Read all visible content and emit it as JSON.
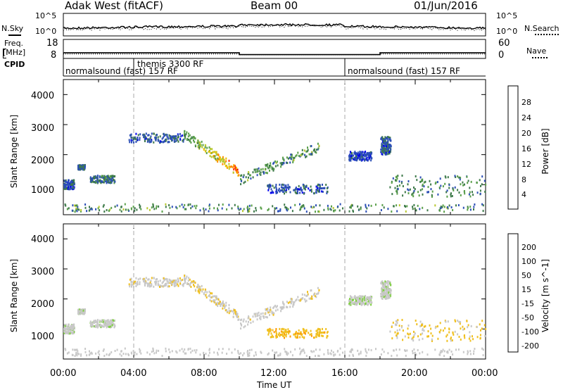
{
  "header": {
    "station": "Adak West (fitACF)",
    "beam": "Beam 00",
    "date": "01/Jun/2016"
  },
  "left_labels": {
    "nsky": "N.Sky",
    "freq": "Freq.",
    "freq_unit": "[MHz]",
    "cpid": "CPID"
  },
  "right_labels": {
    "nsearch": "N.Search",
    "nave": "Nave"
  },
  "noise_axis": {
    "left": [
      "10^5",
      "10^0"
    ],
    "right": [
      "10^5",
      "10^0"
    ]
  },
  "freq_axis": {
    "left": [
      "18",
      "8"
    ],
    "right": [
      "60",
      "0"
    ]
  },
  "cpid_labels": [
    {
      "text": "normalsound (fast) 157 RF",
      "t": 0.1
    },
    {
      "text": "themis 3300 RF",
      "t": 4.0
    },
    {
      "text": "normalsound (fast) 157 RF",
      "t": 16.0
    }
  ],
  "time_axis": {
    "labels": [
      "00:00",
      "04:00",
      "08:00",
      "12:00",
      "16:00",
      "20:00",
      "00:00"
    ],
    "title": "Time UT"
  },
  "power_panel": {
    "ylabel": "Slant Range [km]",
    "yticks": [
      "4000",
      "3000",
      "2000",
      "1000"
    ],
    "colorbar_label": "Power [dB]",
    "colorbar_ticks": [
      "28",
      "24",
      "20",
      "16",
      "12",
      "8",
      "4"
    ],
    "colors": [
      "#0000ee",
      "#2c4fb6",
      "#3e7a4a",
      "#5aa04a",
      "#b8c830",
      "#f0c000",
      "#ff8a00",
      "#ff3300",
      "#e60000"
    ]
  },
  "velocity_panel": {
    "ylabel": "Slant Range [km]",
    "yticks": [
      "4000",
      "3000",
      "2000",
      "1000"
    ],
    "colorbar_label": "Velocity [m s^-1]",
    "colorbar_ticks": [
      "200",
      "100",
      "50",
      "15",
      "-15",
      "-50",
      "-100",
      "-200"
    ],
    "colors": [
      "#1d3fb0",
      "#2f6fa0",
      "#3b8a40",
      "#7fd040",
      "#c8c8c8",
      "#f0c020",
      "#ff9a00",
      "#ff5a00",
      "#ee0000"
    ]
  },
  "chart_data": {
    "type": "heatmap",
    "x_unit": "hours UT",
    "xlim": [
      0,
      24
    ],
    "ylim": [
      0,
      4500
    ],
    "cpid_change_times": [
      4.0,
      16.0
    ],
    "frequency_steps": [
      {
        "start": 0,
        "end": 4.0,
        "value": 11
      },
      {
        "start": 4.0,
        "end": 10.0,
        "value": 11
      },
      {
        "start": 10.0,
        "end": 18.0,
        "value": 10
      },
      {
        "start": 18.0,
        "end": 24.0,
        "value": 11
      }
    ],
    "nave_steps": [
      {
        "start": 0,
        "end": 4.0,
        "value": 14
      },
      {
        "start": 4.0,
        "end": 10.0,
        "value": 14
      },
      {
        "start": 10.0,
        "end": 18.0,
        "value": 12
      },
      {
        "start": 18.0,
        "end": 24.0,
        "value": 14
      }
    ],
    "echo_regions": [
      {
        "name": "early-low-range",
        "t0": 0.0,
        "t1": 0.6,
        "r0": 850,
        "r1": 1150,
        "power": 6,
        "velocity": 5
      },
      {
        "name": "early-1600",
        "t0": 0.8,
        "t1": 1.2,
        "r0": 1500,
        "r1": 1650,
        "power": 7,
        "velocity": 5
      },
      {
        "name": "early-1200",
        "t0": 1.5,
        "t1": 2.9,
        "r0": 1050,
        "r1": 1300,
        "power": 8,
        "velocity": 5
      },
      {
        "name": "band-2600",
        "t0": 3.7,
        "t1": 6.8,
        "r0": 2400,
        "r1": 2700,
        "power": 6,
        "velocity": -5
      },
      {
        "name": "main-arc",
        "t0": 6.8,
        "t1": 10.0,
        "r0_start": 2700,
        "r0_end": 1400,
        "power_peak": 30,
        "velocity": -10
      },
      {
        "name": "recovery-arc",
        "t0": 10.0,
        "t1": 14.5,
        "r0_start": 1150,
        "r0_end": 2250,
        "power": 10,
        "velocity": -5
      },
      {
        "name": "late-800",
        "t0": 11.5,
        "t1": 15.0,
        "r0": 700,
        "r1": 1000,
        "power": 6,
        "velocity": -40
      },
      {
        "name": "dusk-2100",
        "t0": 16.2,
        "t1": 17.5,
        "r0": 1800,
        "r1": 2100,
        "power": 5,
        "velocity": 10
      },
      {
        "name": "dusk-2500",
        "t0": 18.0,
        "t1": 18.6,
        "r0": 2000,
        "r1": 2600,
        "power": 6,
        "velocity": 5
      },
      {
        "name": "night-1200",
        "t0": 18.5,
        "t1": 24.0,
        "r0": 600,
        "r1": 1300,
        "power": 9,
        "velocity": -20
      },
      {
        "name": "groundscatter-near",
        "t0": 0.0,
        "t1": 24.0,
        "r0": 100,
        "r1": 350,
        "power": 10,
        "velocity": 0
      }
    ]
  }
}
